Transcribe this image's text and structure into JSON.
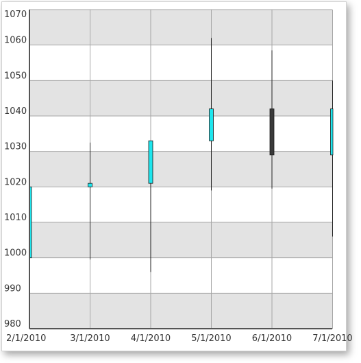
{
  "chart_data": {
    "type": "candlestick",
    "categories": [
      "2/1/2010",
      "3/1/2010",
      "4/1/2010",
      "5/1/2010",
      "6/1/2010",
      "7/1/2010"
    ],
    "ylim": [
      980,
      1070
    ],
    "yticks": [
      980,
      990,
      1000,
      1010,
      1020,
      1030,
      1040,
      1050,
      1060,
      1070
    ],
    "series": [
      {
        "points": [
          {
            "x": "2/1/2010",
            "open": 1000,
            "close": 1020,
            "high": 1020,
            "low": 1000,
            "direction": "up"
          },
          {
            "x": "3/1/2010",
            "open": 1020,
            "close": 1021,
            "high": 1032.5,
            "low": 999.5,
            "direction": "up"
          },
          {
            "x": "4/1/2010",
            "open": 1021,
            "close": 1033,
            "high": 1033,
            "low": 996,
            "direction": "up"
          },
          {
            "x": "5/1/2010",
            "open": 1033,
            "close": 1042,
            "high": 1062,
            "low": 1019,
            "direction": "up"
          },
          {
            "x": "6/1/2010",
            "open": 1042,
            "close": 1029,
            "high": 1058.5,
            "low": 1019.5,
            "direction": "down"
          },
          {
            "x": "7/1/2010",
            "open": 1029,
            "close": 1042,
            "high": 1050,
            "low": 1006,
            "direction": "up"
          }
        ]
      }
    ],
    "grid": true,
    "colors": {
      "up": "#1ee6ee",
      "down": "#3a3a3a",
      "band": "#e3e3e3",
      "gridline": "#a6a6a6",
      "axis": "#555555",
      "wick": "#222222"
    }
  }
}
